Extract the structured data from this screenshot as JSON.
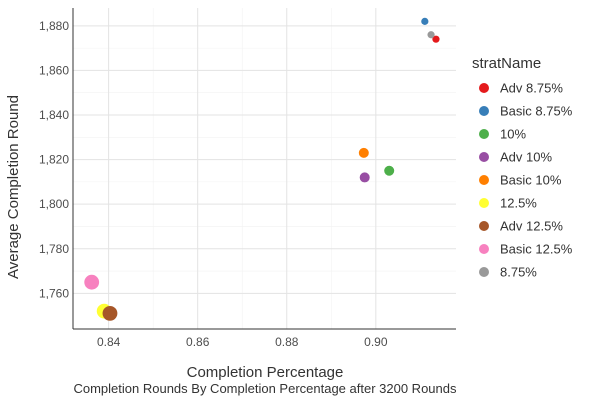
{
  "chart_data": {
    "type": "scatter",
    "xlabel": "Completion Percentage",
    "ylabel": "Average Completion Round",
    "caption": "Completion Rounds By Completion Percentage after 3200 Rounds",
    "xlim": [
      0.832,
      0.918
    ],
    "ylim": [
      1744,
      1888
    ],
    "x_ticks": [
      0.84,
      0.86,
      0.88,
      0.9
    ],
    "x_tick_labels": [
      "0.84",
      "0.86",
      "0.88",
      "0.90"
    ],
    "y_ticks": [
      1760,
      1780,
      1800,
      1820,
      1840,
      1860,
      1880
    ],
    "y_tick_labels": [
      "1,760",
      "1,780",
      "1,800",
      "1,820",
      "1,840",
      "1,860",
      "1,880"
    ],
    "grid": true,
    "legend": {
      "title": "stratName",
      "placement": "right",
      "entries": [
        "Adv 8.75%",
        "Basic 8.75%",
        "10%",
        "Adv 10%",
        "Basic 10%",
        "12.5%",
        "Adv 12.5%",
        "Basic 12.5%",
        "8.75%"
      ]
    },
    "series": [
      {
        "name": "Adv 8.75%",
        "x": 0.9135,
        "y": 1874,
        "size": 1,
        "color": "#e41a1c"
      },
      {
        "name": "Basic 8.75%",
        "x": 0.911,
        "y": 1882,
        "size": 1,
        "color": "#377eb8"
      },
      {
        "name": "10%",
        "x": 0.903,
        "y": 1815,
        "size": 2,
        "color": "#4daf4a"
      },
      {
        "name": "Adv 10%",
        "x": 0.8975,
        "y": 1812,
        "size": 2,
        "color": "#984ea3"
      },
      {
        "name": "Basic 10%",
        "x": 0.8973,
        "y": 1823,
        "size": 2,
        "color": "#ff7f00"
      },
      {
        "name": "12.5%",
        "x": 0.839,
        "y": 1752,
        "size": 3,
        "color": "#ffff33"
      },
      {
        "name": "Adv 12.5%",
        "x": 0.8403,
        "y": 1751,
        "size": 3,
        "color": "#a65628"
      },
      {
        "name": "Basic 12.5%",
        "x": 0.8362,
        "y": 1765,
        "size": 3,
        "color": "#f781bf"
      },
      {
        "name": "8.75%",
        "x": 0.9124,
        "y": 1876,
        "size": 1,
        "color": "#999999"
      }
    ]
  }
}
